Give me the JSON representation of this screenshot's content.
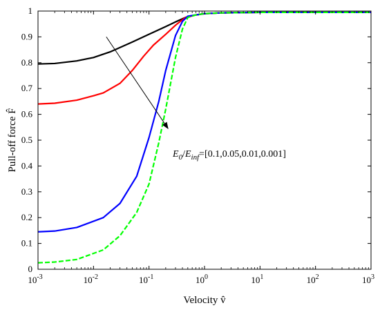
{
  "chart_data": {
    "type": "line",
    "xscale": "log",
    "xlim": [
      0.001,
      1000
    ],
    "ylim": [
      0,
      1
    ],
    "xlabel": "Velocity v̂",
    "ylabel": "Pull-off force F̂",
    "grid": false,
    "legend": "none",
    "x_ticks": [
      {
        "value": 0.001,
        "base": "10",
        "exp": "-3"
      },
      {
        "value": 0.01,
        "base": "10",
        "exp": "-2"
      },
      {
        "value": 0.1,
        "base": "10",
        "exp": "-1"
      },
      {
        "value": 1,
        "base": "10",
        "exp": "0"
      },
      {
        "value": 10,
        "base": "10",
        "exp": "1"
      },
      {
        "value": 100,
        "base": "10",
        "exp": "2"
      },
      {
        "value": 1000,
        "base": "10",
        "exp": "3"
      }
    ],
    "y_ticks": [
      "0",
      "0.1",
      "0.2",
      "0.3",
      "0.4",
      "0.5",
      "0.6",
      "0.7",
      "0.8",
      "0.9",
      "1"
    ],
    "annotation": {
      "text_E": "E",
      "sub_0": "0",
      "slash": "/",
      "text_E2": "E",
      "sub_inf": "inf",
      "values": "=[0.1,0.05,0.01,0.001]",
      "arrow_from": [
        0.017,
        0.9
      ],
      "arrow_to": [
        0.22,
        0.545
      ]
    },
    "series": [
      {
        "color": "#000000",
        "x": [
          0.001,
          0.002,
          0.005,
          0.01,
          0.02,
          0.05,
          0.1,
          0.2,
          0.3,
          0.45,
          0.7,
          1,
          2,
          10,
          100,
          1000
        ],
        "y": [
          0.795,
          0.797,
          0.807,
          0.82,
          0.842,
          0.88,
          0.91,
          0.94,
          0.958,
          0.975,
          0.985,
          0.99,
          0.993,
          0.995,
          0.995,
          0.995
        ]
      },
      {
        "color": "#ff0000",
        "x": [
          0.001,
          0.002,
          0.005,
          0.01,
          0.015,
          0.03,
          0.05,
          0.08,
          0.12,
          0.2,
          0.3,
          0.45,
          0.7,
          1,
          2,
          10,
          100,
          1000
        ],
        "y": [
          0.64,
          0.643,
          0.655,
          0.672,
          0.683,
          0.72,
          0.77,
          0.825,
          0.868,
          0.91,
          0.945,
          0.975,
          0.985,
          0.99,
          0.993,
          0.995,
          0.995,
          0.995
        ]
      },
      {
        "color": "#0000ff",
        "x": [
          0.001,
          0.002,
          0.005,
          0.015,
          0.03,
          0.06,
          0.1,
          0.15,
          0.2,
          0.3,
          0.4,
          0.5,
          0.7,
          1,
          2,
          10,
          100,
          1000
        ],
        "y": [
          0.145,
          0.148,
          0.162,
          0.2,
          0.255,
          0.36,
          0.51,
          0.65,
          0.77,
          0.905,
          0.96,
          0.98,
          0.985,
          0.99,
          0.993,
          0.995,
          0.995,
          0.995
        ]
      },
      {
        "color": "#00ff00",
        "dashed": true,
        "x": [
          0.001,
          0.002,
          0.005,
          0.015,
          0.03,
          0.06,
          0.1,
          0.15,
          0.2,
          0.3,
          0.4,
          0.5,
          0.7,
          1,
          2,
          10,
          100,
          1000
        ],
        "y": [
          0.025,
          0.028,
          0.038,
          0.075,
          0.13,
          0.22,
          0.33,
          0.49,
          0.62,
          0.82,
          0.93,
          0.975,
          0.985,
          0.99,
          0.993,
          0.995,
          0.995,
          0.995
        ]
      }
    ]
  }
}
